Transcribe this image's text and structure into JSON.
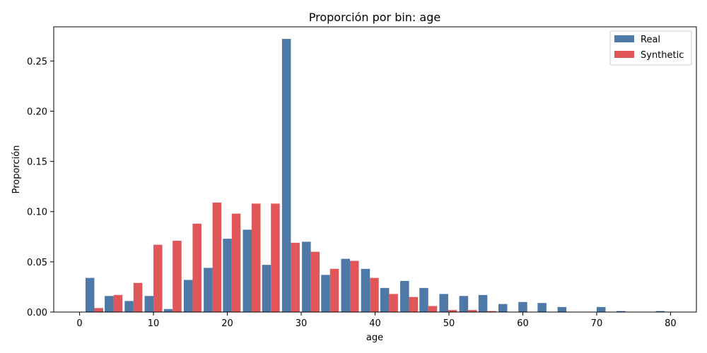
{
  "chart_data": {
    "type": "bar",
    "title": "Proporción por bin: age",
    "xlabel": "age",
    "ylabel": "Proporción",
    "xlim": [
      -3.5,
      83.5
    ],
    "ylim": [
      0,
      0.284
    ],
    "xticks": [
      0,
      10,
      20,
      30,
      40,
      50,
      60,
      70,
      80
    ],
    "yticks": [
      0.0,
      0.05,
      0.1,
      0.15,
      0.2,
      0.25
    ],
    "ytick_labels": [
      "0.00",
      "0.05",
      "0.10",
      "0.15",
      "0.20",
      "0.25"
    ],
    "legend_position": "top-right",
    "bin_centers": [
      2.0,
      4.6,
      7.3,
      10.0,
      12.6,
      15.3,
      18.0,
      20.6,
      23.3,
      25.9,
      28.6,
      31.3,
      33.9,
      36.6,
      39.3,
      41.9,
      44.6,
      47.2,
      49.9,
      52.6,
      55.2,
      57.9,
      60.6,
      63.2,
      65.9,
      68.5,
      71.2,
      73.9,
      76.5,
      79.2
    ],
    "series": [
      {
        "name": "Real",
        "color": "#4e79a7",
        "values": [
          0.034,
          0.016,
          0.011,
          0.016,
          0.003,
          0.032,
          0.044,
          0.073,
          0.082,
          0.047,
          0.272,
          0.07,
          0.037,
          0.053,
          0.043,
          0.024,
          0.031,
          0.024,
          0.018,
          0.016,
          0.017,
          0.008,
          0.01,
          0.009,
          0.005,
          0.0,
          0.005,
          0.001,
          0.0,
          0.001
        ]
      },
      {
        "name": "Synthetic",
        "color": "#e15759",
        "values": [
          0.004,
          0.017,
          0.029,
          0.067,
          0.071,
          0.088,
          0.109,
          0.098,
          0.108,
          0.108,
          0.069,
          0.06,
          0.043,
          0.051,
          0.034,
          0.018,
          0.015,
          0.006,
          0.002,
          0.002,
          0.001,
          0.0,
          0.0,
          0.0,
          0.0,
          0.0,
          0.0,
          0.0,
          0.0,
          0.0
        ]
      }
    ]
  }
}
